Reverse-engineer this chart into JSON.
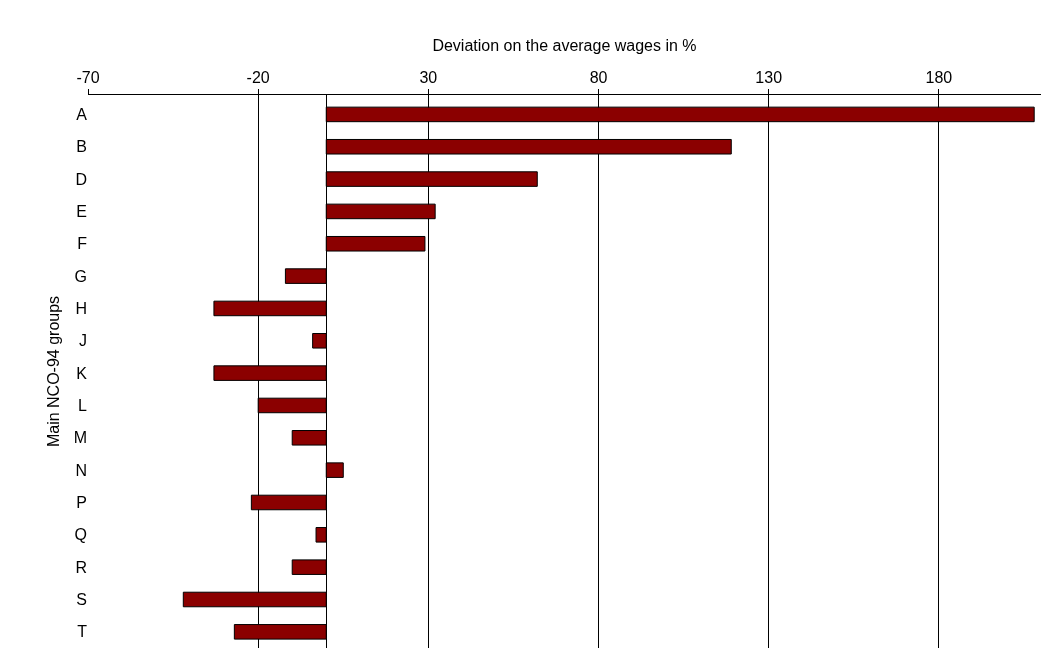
{
  "chart_data": {
    "type": "bar",
    "orientation": "horizontal",
    "xlabel": "Deviation on the average wages in %",
    "ylabel": "Main NCO-94 groups",
    "categories": [
      "A",
      "B",
      "D",
      "E",
      "F",
      "G",
      "H",
      "J",
      "K",
      "L",
      "M",
      "N",
      "P",
      "Q",
      "R",
      "S",
      "T"
    ],
    "values": [
      208,
      119,
      62,
      32,
      29,
      -12,
      -33,
      -4,
      -33,
      -20,
      -10,
      5,
      -22,
      -3,
      -10,
      -42,
      -27
    ],
    "color": "#8b0000",
    "xlim": [
      -70,
      210
    ],
    "xticks": [
      -70,
      -20,
      30,
      80,
      130,
      180
    ],
    "grid": "x",
    "legend": false
  }
}
